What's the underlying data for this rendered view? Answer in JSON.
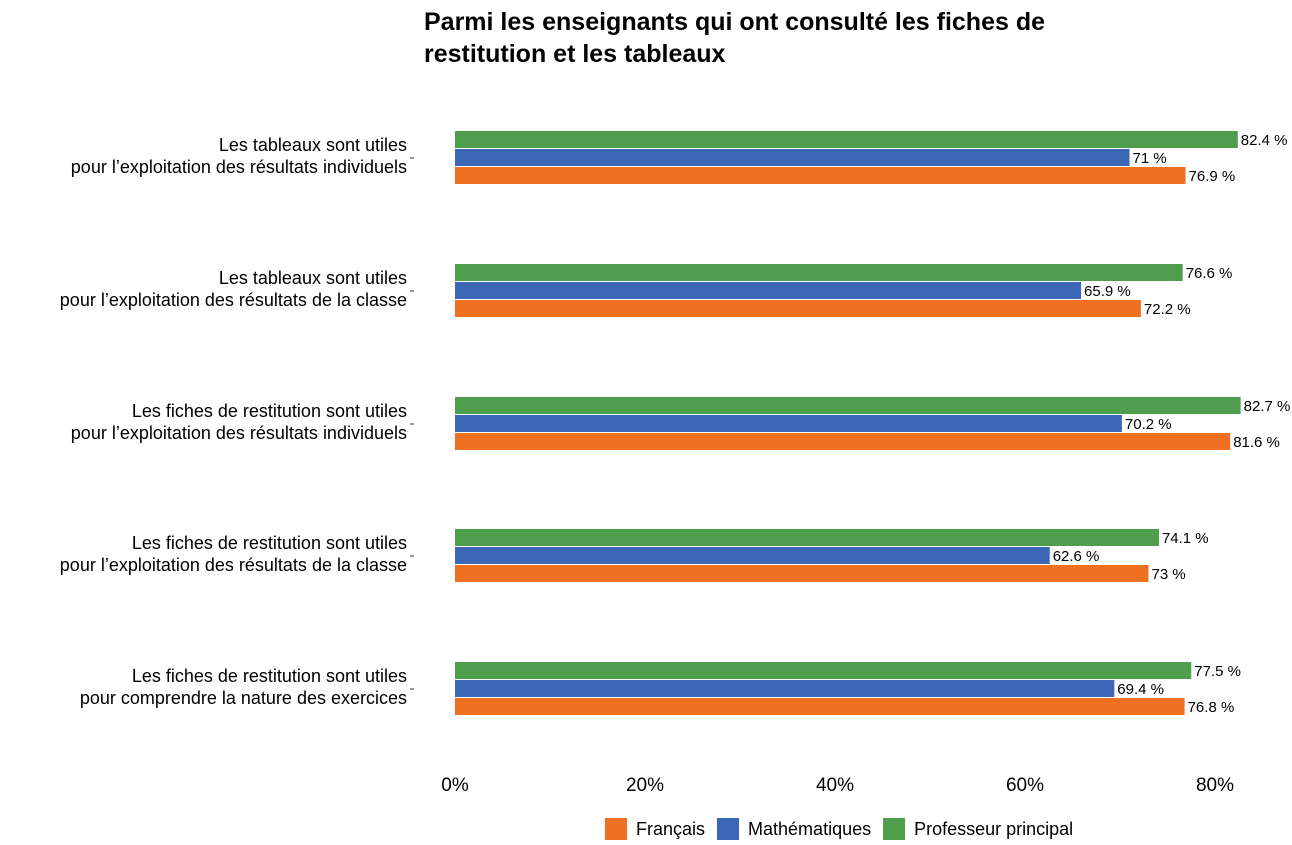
{
  "chart_data": {
    "type": "bar",
    "orientation": "horizontal",
    "title_lines": [
      "Parmi les enseignants qui ont consulté les fiches de",
      "restitution et les tableaux"
    ],
    "categories": [
      [
        "Les tableaux sont utiles",
        "pour l’exploitation des résultats individuels"
      ],
      [
        "Les tableaux sont utiles",
        "pour l’exploitation des résultats de la classe"
      ],
      [
        "Les fiches de restitution sont utiles",
        "pour l’exploitation des résultats individuels"
      ],
      [
        "Les fiches de restitution sont utiles",
        "pour l’exploitation des résultats de la classe"
      ],
      [
        "Les fiches de restitution sont utiles",
        "pour comprendre la nature des exercices"
      ]
    ],
    "series": [
      {
        "name": "Professeur principal",
        "color": "#4e9e4e",
        "values": [
          82.4,
          76.6,
          82.7,
          74.1,
          77.5
        ],
        "labels": [
          "82.4 %",
          "76.6 %",
          "82.7 %",
          "74.1 %",
          "77.5 %"
        ]
      },
      {
        "name": "Mathématiques",
        "color": "#3a66b5",
        "values": [
          71,
          65.9,
          70.2,
          62.6,
          69.4
        ],
        "labels": [
          "71 %",
          "65.9 %",
          "70.2 %",
          "62.6 %",
          "69.4 %"
        ]
      },
      {
        "name": "Français",
        "color": "#ee7020",
        "values": [
          76.9,
          72.2,
          81.6,
          73,
          76.8
        ],
        "labels": [
          "76.9 %",
          "72.2 %",
          "81.6 %",
          "73 %",
          "76.8 %"
        ]
      }
    ],
    "legend_order": [
      "Français",
      "Mathématiques",
      "Professeur principal"
    ],
    "xticks": [
      0,
      20,
      40,
      60,
      80
    ],
    "xtick_labels": [
      "0%",
      "20%",
      "40%",
      "60%",
      "80%"
    ],
    "xlim": [
      0,
      87
    ],
    "xlabel": "",
    "ylabel": "",
    "grid": false,
    "legend_position": "bottom"
  }
}
